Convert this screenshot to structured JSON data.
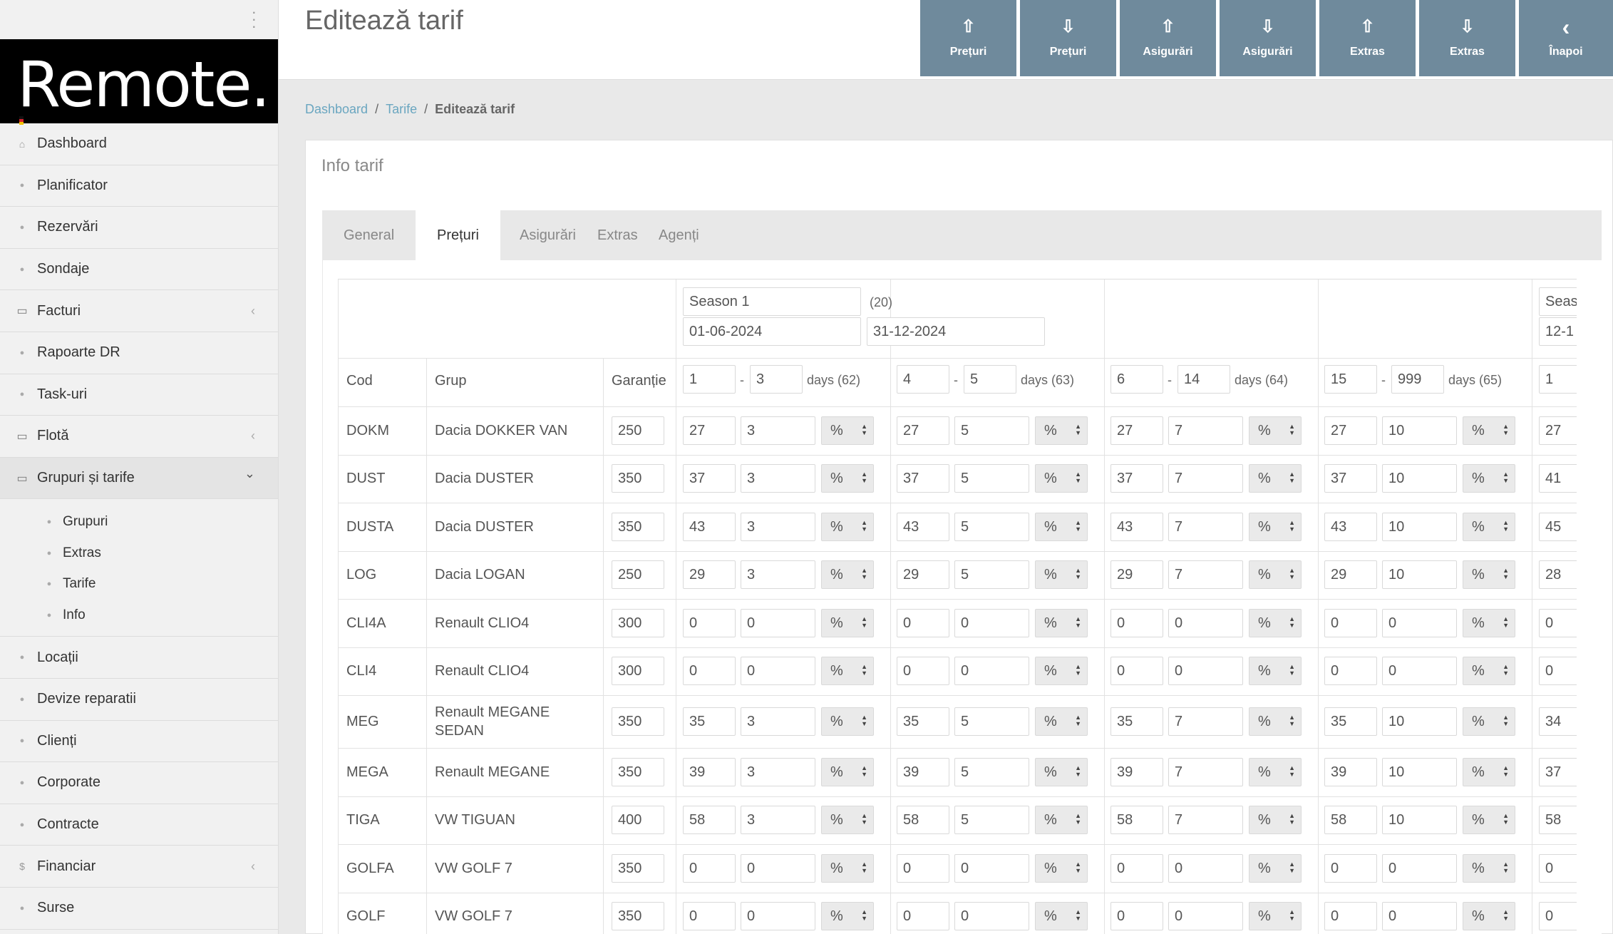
{
  "app": {
    "logo_text": "Remote."
  },
  "sidebar": {
    "items_top": [
      {
        "label": "Dashboard",
        "icon": "home-icon"
      },
      {
        "label": "Planificator",
        "icon": "users-icon"
      },
      {
        "label": "Rezervări",
        "icon": "users-icon"
      },
      {
        "label": "Sondaje",
        "icon": "users-icon"
      },
      {
        "label": "Facturi",
        "icon": "monitor-icon",
        "caret": "‹"
      },
      {
        "label": "Rapoarte DR",
        "icon": "users-icon"
      },
      {
        "label": "Task-uri",
        "icon": "users-icon"
      },
      {
        "label": "Flotă",
        "icon": "monitor-icon",
        "caret": "‹"
      },
      {
        "label": "Grupuri și tarife",
        "icon": "monitor-icon",
        "caret": "⌄",
        "active": true
      }
    ],
    "subitems": [
      {
        "label": "Grupuri"
      },
      {
        "label": "Extras"
      },
      {
        "label": "Tarife"
      },
      {
        "label": "Info"
      }
    ],
    "items_bottom": [
      {
        "label": "Locații",
        "icon": "users-icon"
      },
      {
        "label": "Devize reparatii",
        "icon": "users-icon"
      },
      {
        "label": "Clienți",
        "icon": "users-icon"
      },
      {
        "label": "Corporate",
        "icon": "users-icon"
      },
      {
        "label": "Contracte",
        "icon": "users-icon"
      },
      {
        "label": "Financiar",
        "icon": "dollar-icon",
        "caret": "‹"
      },
      {
        "label": "Surse",
        "icon": "users-icon"
      }
    ]
  },
  "header": {
    "title": "Editează tarif",
    "buttons": [
      {
        "label": "Prețuri",
        "icon": "upload-icon"
      },
      {
        "label": "Prețuri",
        "icon": "download-icon"
      },
      {
        "label": "Asigurări",
        "icon": "upload-icon"
      },
      {
        "label": "Asigurări",
        "icon": "download-icon"
      },
      {
        "label": "Extras",
        "icon": "upload-icon"
      },
      {
        "label": "Extras",
        "icon": "download-icon"
      },
      {
        "label": "Înapoi",
        "icon": "chevron-left-icon"
      }
    ]
  },
  "breadcrumb": {
    "items": [
      "Dashboard",
      "Tarife"
    ],
    "current": "Editează tarif"
  },
  "panel": {
    "title": "Info tarif",
    "tabs": [
      "General",
      "Prețuri",
      "Asigurări",
      "Extras",
      "Agenți"
    ],
    "active_tab": "Prețuri"
  },
  "season": {
    "name": "Season 1",
    "count": "(20)",
    "start": "01-06-2024",
    "end": "31-12-2024",
    "next_name": "Seas",
    "next_start": "12-1"
  },
  "table": {
    "headers": {
      "cod": "Cod",
      "grup": "Grup",
      "garantie": "Garanție"
    },
    "ranges": [
      {
        "from": "1",
        "to": "3",
        "days": "days (62)"
      },
      {
        "from": "4",
        "to": "5",
        "days": "days (63)"
      },
      {
        "from": "6",
        "to": "14",
        "days": "days (64)"
      },
      {
        "from": "15",
        "to": "999",
        "days": "days (65)"
      },
      {
        "from": "1"
      }
    ],
    "range_sep": "-",
    "unit": "%",
    "rows": [
      {
        "cod": "DOKM",
        "grup": "Dacia DOKKER VAN",
        "garantie": "250",
        "prices": [
          "27",
          "27",
          "27",
          "27",
          "27"
        ],
        "disc": [
          "3",
          "5",
          "7",
          "10"
        ]
      },
      {
        "cod": "DUST",
        "grup": "Dacia DUSTER",
        "garantie": "350",
        "prices": [
          "37",
          "37",
          "37",
          "37",
          "41"
        ],
        "disc": [
          "3",
          "5",
          "7",
          "10"
        ]
      },
      {
        "cod": "DUSTA",
        "grup": "Dacia DUSTER",
        "garantie": "350",
        "prices": [
          "43",
          "43",
          "43",
          "43",
          "45"
        ],
        "disc": [
          "3",
          "5",
          "7",
          "10"
        ]
      },
      {
        "cod": "LOG",
        "grup": "Dacia LOGAN",
        "garantie": "250",
        "prices": [
          "29",
          "29",
          "29",
          "29",
          "28"
        ],
        "disc": [
          "3",
          "5",
          "7",
          "10"
        ]
      },
      {
        "cod": "CLI4A",
        "grup": "Renault CLIO4",
        "garantie": "300",
        "prices": [
          "0",
          "0",
          "0",
          "0",
          "0"
        ],
        "disc": [
          "0",
          "0",
          "0",
          "0"
        ]
      },
      {
        "cod": "CLI4",
        "grup": "Renault CLIO4",
        "garantie": "300",
        "prices": [
          "0",
          "0",
          "0",
          "0",
          "0"
        ],
        "disc": [
          "0",
          "0",
          "0",
          "0"
        ]
      },
      {
        "cod": "MEG",
        "grup": "Renault MEGANE",
        "grup2": "SEDAN",
        "garantie": "350",
        "prices": [
          "35",
          "35",
          "35",
          "35",
          "34"
        ],
        "disc": [
          "3",
          "5",
          "7",
          "10"
        ]
      },
      {
        "cod": "MEGA",
        "grup": "Renault MEGANE",
        "garantie": "350",
        "prices": [
          "39",
          "39",
          "39",
          "39",
          "37"
        ],
        "disc": [
          "3",
          "5",
          "7",
          "10"
        ]
      },
      {
        "cod": "TIGA",
        "grup": "VW TIGUAN",
        "garantie": "400",
        "prices": [
          "58",
          "58",
          "58",
          "58",
          "58"
        ],
        "disc": [
          "3",
          "5",
          "7",
          "10"
        ]
      },
      {
        "cod": "GOLFA",
        "grup": "VW GOLF 7",
        "garantie": "350",
        "prices": [
          "0",
          "0",
          "0",
          "0",
          "0"
        ],
        "disc": [
          "0",
          "0",
          "0",
          "0"
        ]
      },
      {
        "cod": "GOLF",
        "grup": "VW GOLF 7",
        "garantie": "350",
        "prices": [
          "0",
          "0",
          "0",
          "0",
          "0"
        ],
        "disc": [
          "0",
          "0",
          "0",
          "0"
        ]
      }
    ]
  },
  "colors": {
    "button_bg": "#6f8a9c",
    "link": "#6aa6c0",
    "logo_bg": "#000000",
    "logo_stripe": [
      "#111111",
      "#d4202c",
      "#f2c200"
    ]
  }
}
